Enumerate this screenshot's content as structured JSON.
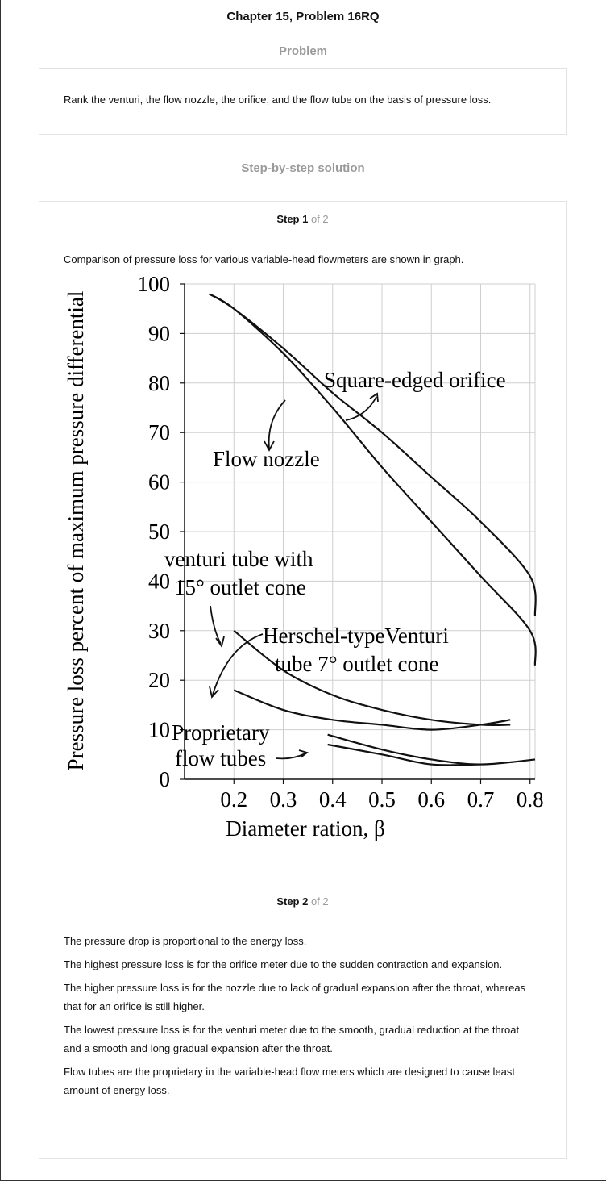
{
  "page": {
    "title": "Chapter 15, Problem 16RQ"
  },
  "problem": {
    "heading": "Problem",
    "text": "Rank the venturi, the flow nozzle, the orifice, and the flow tube on the basis of pressure loss."
  },
  "solution": {
    "heading": "Step-by-step solution",
    "step1": {
      "label": "Step 1",
      "of": "of 2",
      "text": "Comparison of pressure loss for various variable-head flowmeters are shown in graph."
    },
    "step2": {
      "label": "Step 2",
      "of": "of 2",
      "paragraphs": [
        "The pressure drop is proportional to the energy loss.",
        "The highest pressure loss is for the orifice meter due to the sudden contraction and expansion.",
        "The higher pressure loss is for the nozzle due to lack of gradual expansion after the throat, whereas that for an orifice is still higher.",
        "The lowest pressure loss is for the venturi meter due to the smooth, gradual reduction at the throat and a smooth and long gradual expansion after the throat.",
        "Flow tubes are the proprietary in the variable-head flow meters which are designed to cause least amount of energy loss."
      ]
    }
  },
  "chart_data": {
    "type": "line",
    "xlabel": "Diameter ration, β",
    "ylabel": "Pressure loss percent of maximum pressure differential",
    "xlim": [
      0.1,
      0.9
    ],
    "ylim": [
      0,
      100
    ],
    "xticks": [
      "0.2",
      "0.3",
      "0.4",
      "0.5",
      "0.6",
      "0.7",
      "0.8"
    ],
    "yticks": [
      "0",
      "10",
      "20",
      "30",
      "40",
      "50",
      "60",
      "70",
      "80",
      "90",
      "100"
    ],
    "grid": true,
    "series": [
      {
        "name": "Square-edged orifice",
        "x": [
          0.15,
          0.2,
          0.3,
          0.4,
          0.5,
          0.6,
          0.7,
          0.8,
          0.86
        ],
        "y": [
          98,
          95,
          87,
          78,
          70,
          61,
          52,
          41,
          33
        ]
      },
      {
        "name": "Flow nozzle",
        "x": [
          0.15,
          0.2,
          0.3,
          0.4,
          0.5,
          0.6,
          0.7,
          0.8,
          0.86
        ],
        "y": [
          98,
          95,
          86,
          75,
          63,
          52,
          41,
          30,
          23
        ]
      },
      {
        "name": "venturi tube with 15° outlet cone",
        "x": [
          0.2,
          0.3,
          0.4,
          0.5,
          0.6,
          0.7,
          0.76
        ],
        "y": [
          30,
          22,
          17,
          14,
          12,
          11,
          11
        ]
      },
      {
        "name": "Herschel-typeVenturi tube 7° outlet cone",
        "x": [
          0.2,
          0.3,
          0.4,
          0.5,
          0.6,
          0.7,
          0.76
        ],
        "y": [
          18,
          14,
          12,
          11,
          10,
          11,
          12
        ]
      },
      {
        "name": "Proprietary flow tubes (upper)",
        "x": [
          0.39,
          0.5,
          0.6,
          0.7,
          0.82
        ],
        "y": [
          9,
          6,
          4,
          3,
          4
        ]
      },
      {
        "name": "Proprietary flow tubes (lower)",
        "x": [
          0.39,
          0.5,
          0.6,
          0.7
        ],
        "y": [
          7,
          5,
          3,
          3
        ]
      }
    ],
    "annotations": [
      "Square-edged orifice",
      "Flow nozzle",
      "venturi tube with",
      "15° outlet cone",
      "Herschel-typeVenturi",
      "tube 7° outlet cone",
      "Proprietary",
      "flow tubes"
    ]
  }
}
